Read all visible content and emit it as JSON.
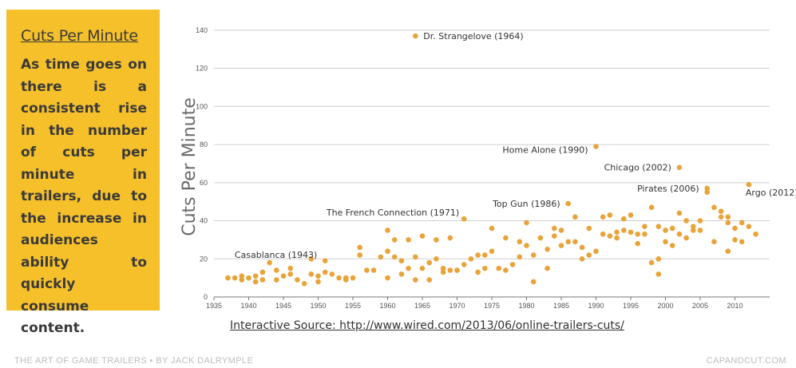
{
  "sidebar": {
    "title": "Cuts Per Minute",
    "body": "As time goes on there is a consistent rise in the number of cuts per minute in trailers, due to the increase in audiences ability to quickly consume content."
  },
  "source": "Interactive Source: http://www.wired.com/2013/06/online-trailers-cuts/",
  "footer": {
    "left": "THE ART OF GAME TRAILERS • BY JACK DALRYMPLE",
    "right": "CAPANDCUT.COM"
  },
  "colors": {
    "accent": "#f6c02a",
    "point": "#e8a43a",
    "grid": "#cfcfcf"
  },
  "chart_data": {
    "type": "scatter",
    "ylabel": "Cuts Per Minute",
    "xlim": [
      1935,
      2015
    ],
    "ylim": [
      0,
      145
    ],
    "xticks": [
      1935,
      1940,
      1945,
      1950,
      1955,
      1960,
      1965,
      1970,
      1975,
      1980,
      1985,
      1990,
      1995,
      2000,
      2005,
      2010
    ],
    "yticks": [
      0,
      20,
      40,
      60,
      80,
      100,
      120,
      140
    ],
    "grid": true,
    "annotations": [
      {
        "label": "Dr. Strangelove (1964)",
        "x": 1964,
        "y": 137
      },
      {
        "label": "Home Alone (1990)",
        "x": 1990,
        "y": 79
      },
      {
        "label": "Chicago (2002)",
        "x": 2002,
        "y": 68
      },
      {
        "label": "Argo (2012)",
        "x": 2012,
        "y": 59
      },
      {
        "label": "Pirates (2006)",
        "x": 2006,
        "y": 57
      },
      {
        "label": "Top Gun (1986)",
        "x": 1986,
        "y": 49
      },
      {
        "label": "The French Connection (1971)",
        "x": 1971,
        "y": 41
      },
      {
        "label": "Casablanca (1943)",
        "x": 1943,
        "y": 18
      }
    ],
    "points": [
      [
        1937,
        10
      ],
      [
        1938,
        10
      ],
      [
        1939,
        9
      ],
      [
        1939,
        11
      ],
      [
        1940,
        10
      ],
      [
        1941,
        11
      ],
      [
        1941,
        8
      ],
      [
        1942,
        13
      ],
      [
        1943,
        18
      ],
      [
        1942,
        9
      ],
      [
        1944,
        9
      ],
      [
        1944,
        14
      ],
      [
        1945,
        11
      ],
      [
        1946,
        15
      ],
      [
        1946,
        12
      ],
      [
        1947,
        9
      ],
      [
        1948,
        7
      ],
      [
        1949,
        20
      ],
      [
        1949,
        12
      ],
      [
        1950,
        8
      ],
      [
        1950,
        11
      ],
      [
        1951,
        19
      ],
      [
        1951,
        13
      ],
      [
        1952,
        12
      ],
      [
        1953,
        10
      ],
      [
        1954,
        10
      ],
      [
        1954,
        9
      ],
      [
        1955,
        10
      ],
      [
        1956,
        26
      ],
      [
        1956,
        22
      ],
      [
        1957,
        14
      ],
      [
        1958,
        14
      ],
      [
        1959,
        21
      ],
      [
        1960,
        10
      ],
      [
        1960,
        35
      ],
      [
        1960,
        24
      ],
      [
        1961,
        21
      ],
      [
        1961,
        30
      ],
      [
        1962,
        12
      ],
      [
        1962,
        19
      ],
      [
        1963,
        30
      ],
      [
        1963,
        15
      ],
      [
        1964,
        137
      ],
      [
        1964,
        9
      ],
      [
        1964,
        21
      ],
      [
        1965,
        32
      ],
      [
        1965,
        15
      ],
      [
        1966,
        18
      ],
      [
        1966,
        9
      ],
      [
        1967,
        20
      ],
      [
        1967,
        30
      ],
      [
        1968,
        13
      ],
      [
        1968,
        15
      ],
      [
        1969,
        31
      ],
      [
        1969,
        14
      ],
      [
        1970,
        14
      ],
      [
        1970,
        14
      ],
      [
        1971,
        41
      ],
      [
        1971,
        17
      ],
      [
        1972,
        20
      ],
      [
        1973,
        22
      ],
      [
        1973,
        13
      ],
      [
        1974,
        22
      ],
      [
        1974,
        15
      ],
      [
        1975,
        36
      ],
      [
        1975,
        24
      ],
      [
        1976,
        15
      ],
      [
        1977,
        31
      ],
      [
        1977,
        14
      ],
      [
        1978,
        17
      ],
      [
        1979,
        21
      ],
      [
        1979,
        29
      ],
      [
        1980,
        39
      ],
      [
        1980,
        27
      ],
      [
        1981,
        22
      ],
      [
        1981,
        8
      ],
      [
        1982,
        31
      ],
      [
        1983,
        25
      ],
      [
        1983,
        15
      ],
      [
        1984,
        32
      ],
      [
        1984,
        36
      ],
      [
        1985,
        35
      ],
      [
        1985,
        27
      ],
      [
        1986,
        49
      ],
      [
        1986,
        29
      ],
      [
        1987,
        29
      ],
      [
        1987,
        42
      ],
      [
        1988,
        26
      ],
      [
        1988,
        20
      ],
      [
        1989,
        36
      ],
      [
        1989,
        22
      ],
      [
        1990,
        79
      ],
      [
        1990,
        24
      ],
      [
        1991,
        33
      ],
      [
        1991,
        42
      ],
      [
        1992,
        43
      ],
      [
        1992,
        32
      ],
      [
        1993,
        31
      ],
      [
        1993,
        34
      ],
      [
        1994,
        35
      ],
      [
        1994,
        41
      ],
      [
        1995,
        43
      ],
      [
        1995,
        34
      ],
      [
        1996,
        28
      ],
      [
        1996,
        33
      ],
      [
        1997,
        37
      ],
      [
        1997,
        33
      ],
      [
        1998,
        47
      ],
      [
        1998,
        18
      ],
      [
        1999,
        12
      ],
      [
        1999,
        20
      ],
      [
        1999,
        37
      ],
      [
        2000,
        29
      ],
      [
        2000,
        35
      ],
      [
        2001,
        36
      ],
      [
        2001,
        27
      ],
      [
        2002,
        68
      ],
      [
        2002,
        44
      ],
      [
        2002,
        33
      ],
      [
        2003,
        31
      ],
      [
        2003,
        40
      ],
      [
        2004,
        35
      ],
      [
        2004,
        37
      ],
      [
        2005,
        40
      ],
      [
        2005,
        35
      ],
      [
        2006,
        57
      ],
      [
        2006,
        55
      ],
      [
        2007,
        47
      ],
      [
        2007,
        29
      ],
      [
        2008,
        45
      ],
      [
        2008,
        42
      ],
      [
        2009,
        39
      ],
      [
        2009,
        24
      ],
      [
        2009,
        42
      ],
      [
        2010,
        30
      ],
      [
        2010,
        36
      ],
      [
        2011,
        39
      ],
      [
        2011,
        29
      ],
      [
        2012,
        59
      ],
      [
        2012,
        37
      ],
      [
        2013,
        33
      ]
    ]
  }
}
